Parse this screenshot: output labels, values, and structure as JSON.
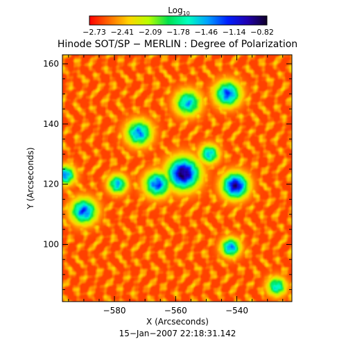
{
  "chart_data": {
    "type": "heatmap",
    "title": "Hinode SOT/SP − MERLIN : Degree of Polarization",
    "xlabel": "X (Arcseconds)",
    "ylabel": "Y (Arcseconds)",
    "timestamp": "15−Jan−2007 22:18:31.142",
    "xlim": [
      -597,
      -522
    ],
    "ylim": [
      81,
      163
    ],
    "xticks": [
      -580,
      -560,
      -540
    ],
    "xtick_labels": [
      "−580",
      "−560",
      "−540"
    ],
    "yticks": [
      100,
      120,
      140,
      160
    ],
    "ytick_labels": [
      "100",
      "120",
      "140",
      "160"
    ],
    "colorbar": {
      "label_base": "Log",
      "label_sub": "10",
      "range": [
        -2.73,
        -0.82
      ],
      "tick_labels": [
        "−2.73",
        "−2.41",
        "−2.09",
        "−1.78",
        "−1.46",
        "−1.14",
        "−0.82"
      ],
      "colormap": [
        "#ff0000",
        "#ff6a00",
        "#ffd400",
        "#b8ff00",
        "#00e050",
        "#00ffc0",
        "#00a0ff",
        "#0020ff",
        "#2000b0",
        "#100028"
      ]
    },
    "concentrations": [
      {
        "x": -557.5,
        "y": 123.5,
        "value": -0.9,
        "spread": 5
      },
      {
        "x": -540.5,
        "y": 119.5,
        "value": -1.0,
        "spread": 4
      },
      {
        "x": -590,
        "y": 111,
        "value": -1.3,
        "spread": 4
      },
      {
        "x": -566,
        "y": 120,
        "value": -1.3,
        "spread": 4
      },
      {
        "x": -572,
        "y": 137,
        "value": -1.4,
        "spread": 4
      },
      {
        "x": -543,
        "y": 150,
        "value": -1.3,
        "spread": 4
      },
      {
        "x": -556,
        "y": 147,
        "value": -1.5,
        "spread": 4
      },
      {
        "x": -542,
        "y": 99,
        "value": -1.4,
        "spread": 3
      },
      {
        "x": -596,
        "y": 123,
        "value": -1.4,
        "spread": 3
      },
      {
        "x": -527,
        "y": 86,
        "value": -1.6,
        "spread": 3
      },
      {
        "x": -579,
        "y": 120,
        "value": -1.5,
        "spread": 3
      },
      {
        "x": -549,
        "y": 130,
        "value": -1.5,
        "spread": 3
      }
    ]
  }
}
